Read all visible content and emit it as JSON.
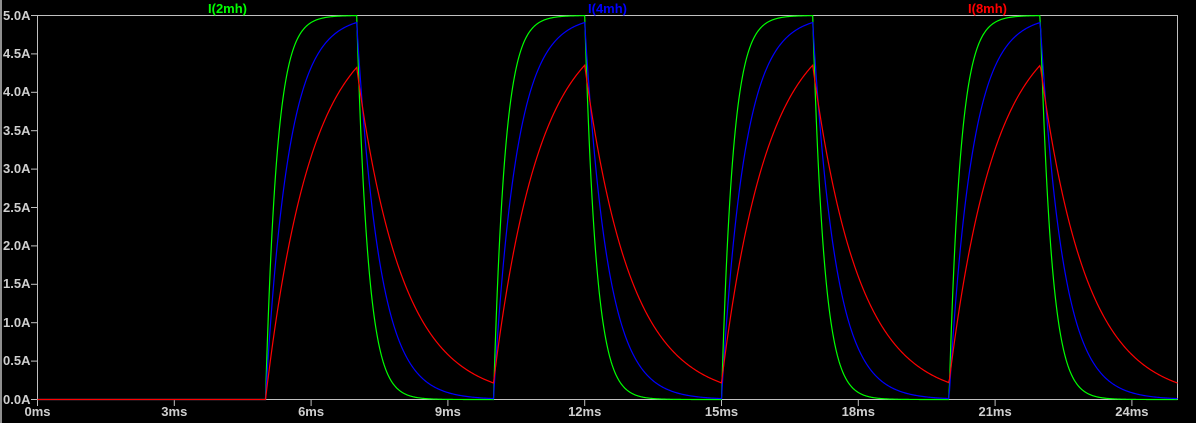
{
  "window": {
    "background_color": "#000000",
    "chrome_color": "#c0c0c0",
    "text_color": "#cfcfcf",
    "pane_edge_color": "#8f8f8f"
  },
  "chart_data": {
    "type": "line",
    "title": "",
    "x_unit": "ms",
    "y_unit": "A",
    "xlim_ms": [
      0,
      25
    ],
    "ylim_A": [
      0,
      5
    ],
    "grid": false,
    "legend_position": "top",
    "x_tick_values_ms": [
      0,
      3,
      6,
      9,
      12,
      15,
      18,
      21,
      24
    ],
    "x_tick_labels": [
      "0ms",
      "3ms",
      "6ms",
      "9ms",
      "12ms",
      "15ms",
      "18ms",
      "21ms",
      "24ms"
    ],
    "y_tick_values_A": [
      5.0,
      4.5,
      4.0,
      3.5,
      3.0,
      2.5,
      2.0,
      1.5,
      1.0,
      0.5,
      0.0
    ],
    "y_tick_labels": [
      "5.0A",
      "4.5A",
      "4.0A",
      "3.5A",
      "3.0A",
      "2.5A",
      "2.0A",
      "1.5A",
      "1.0A",
      "0.5A",
      "0.0A"
    ],
    "pulse": {
      "rise_times_ms": [
        5,
        10,
        15,
        20
      ],
      "fall_times_ms": [
        7,
        12,
        17,
        22
      ],
      "drive_current_A": 5,
      "start_current_A": 0
    },
    "series": [
      {
        "name": "I(2mh)",
        "color": "#00ff00",
        "tau_ms": 0.25,
        "peak_A": 5.0
      },
      {
        "name": "I(4mh)",
        "color": "#0000ff",
        "tau_ms": 0.5,
        "peak_A": 4.9
      },
      {
        "name": "I(8mh)",
        "color": "#ff0000",
        "tau_ms": 1.0,
        "peak_A": 4.33
      }
    ]
  }
}
